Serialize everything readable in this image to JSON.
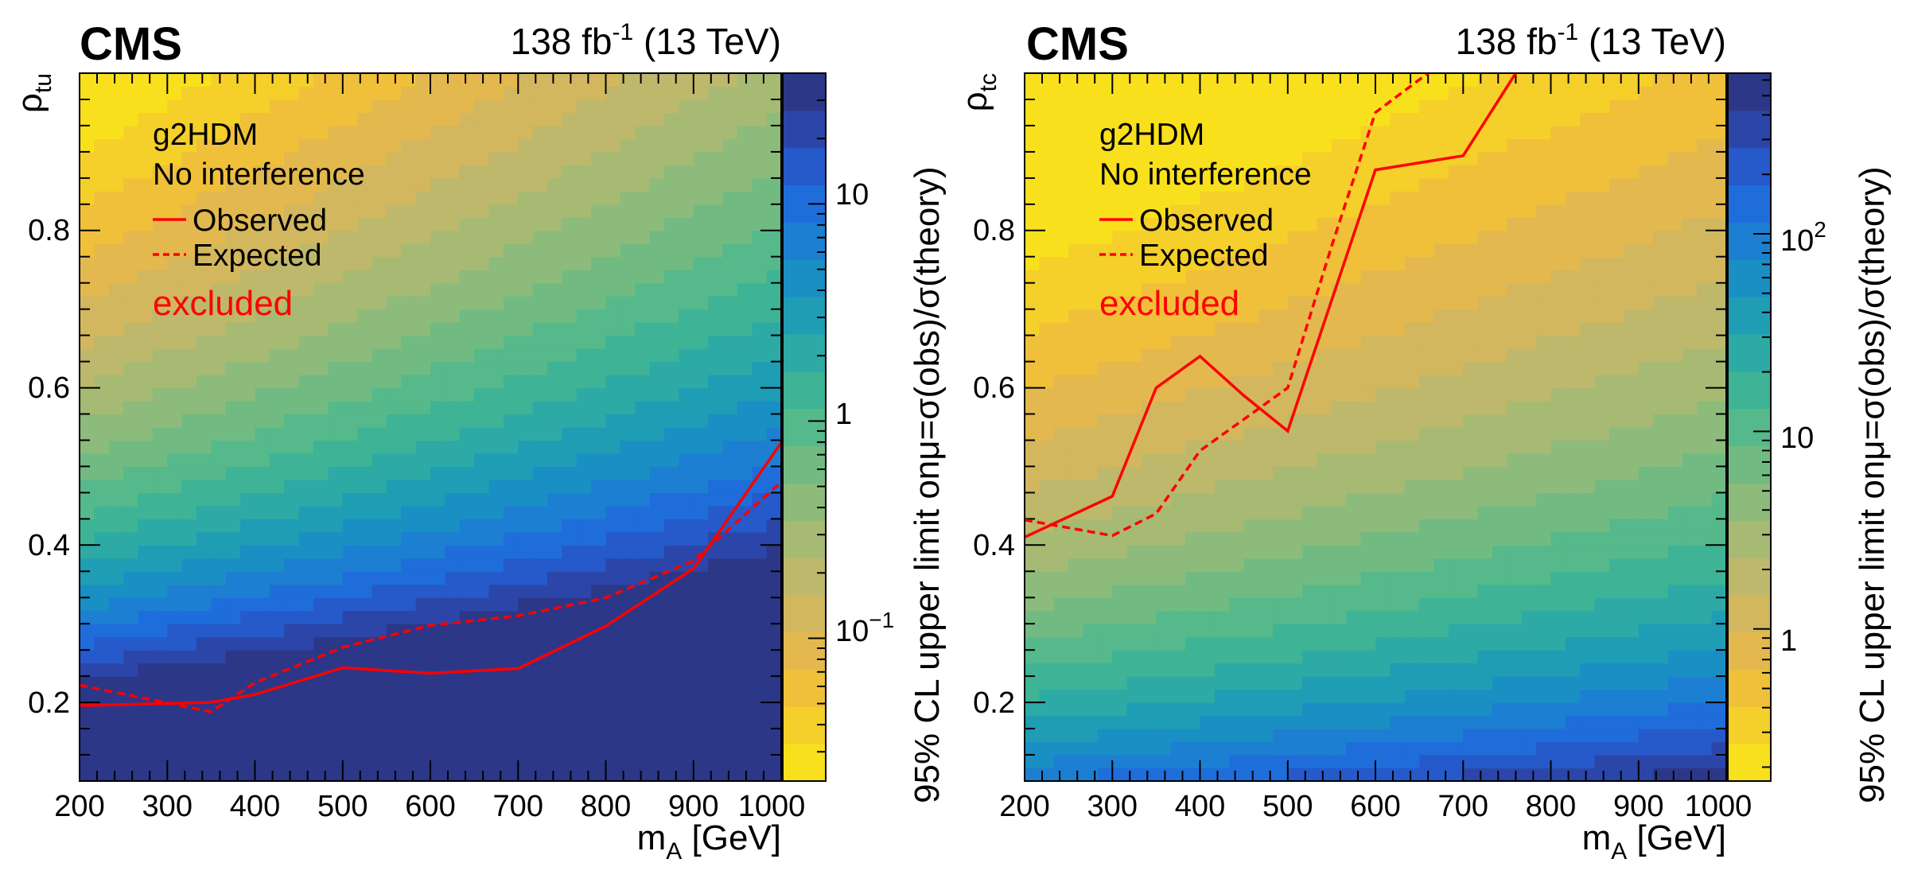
{
  "palette": [
    "#f9e01c",
    "#f5cf2a",
    "#f0c03a",
    "#e3b84e",
    "#d2b75f",
    "#bdb86b",
    "#a6ba74",
    "#8cbb7b",
    "#71bb83",
    "#55b98b",
    "#3eb396",
    "#2daaa5",
    "#1f9db5",
    "#1a8fc4",
    "#1c7fd1",
    "#1f6dda",
    "#2659c9",
    "#2b46a8",
    "#2c3788"
  ],
  "panels": [
    {
      "header": {
        "cms": "CMS",
        "lumi_main": "138 fb",
        "lumi_sup": "-1",
        "lumi_energy": " (13 TeV)"
      },
      "legend": {
        "model": "g2HDM",
        "interference": "No interference",
        "observed": "Observed",
        "expected": "Expected",
        "excluded": "excluded"
      },
      "colorbar_title": "95% CL upper limit onμ=σ(obs)/σ(theory)",
      "ylabel_main": "ρ",
      "ylabel_sub": "tu",
      "xlabel_main": "m",
      "xlabel_sub": "A",
      "xlabel_unit": " [GeV]",
      "x_ticks": [
        "200",
        "300",
        "400",
        "500",
        "600",
        "700",
        "800",
        "900",
        "1000"
      ],
      "y_ticks": [
        "0.2",
        "0.4",
        "0.6",
        "0.8"
      ],
      "cb_ticks": [
        {
          "base": "10",
          "sup": "−1",
          "value": 0.1
        },
        {
          "base": "1",
          "sup": "",
          "value": 1
        },
        {
          "base": "10",
          "sup": "",
          "value": 10
        }
      ]
    },
    {
      "header": {
        "cms": "CMS",
        "lumi_main": "138 fb",
        "lumi_sup": "-1",
        "lumi_energy": " (13 TeV)"
      },
      "legend": {
        "model": "g2HDM",
        "interference": "No interference",
        "observed": "Observed",
        "expected": "Expected",
        "excluded": "excluded"
      },
      "colorbar_title": "95% CL upper limit onμ=σ(obs)/σ(theory)",
      "ylabel_main": "ρ",
      "ylabel_sub": "tc",
      "xlabel_main": "m",
      "xlabel_sub": "A",
      "xlabel_unit": " [GeV]",
      "x_ticks": [
        "200",
        "300",
        "400",
        "500",
        "600",
        "700",
        "800",
        "900",
        "1000"
      ],
      "y_ticks": [
        "0.2",
        "0.4",
        "0.6",
        "0.8"
      ],
      "cb_ticks": [
        {
          "base": "1",
          "sup": "",
          "value": 1
        },
        {
          "base": "10",
          "sup": "",
          "value": 10
        },
        {
          "base": "10",
          "sup": "2",
          "value": 100
        }
      ]
    }
  ],
  "chart_data": [
    {
      "type": "heatmap",
      "title": "CMS 138 fb-1 (13 TeV)",
      "xlabel": "m_A [GeV]",
      "ylabel": "rho_tu",
      "zlabel": "95% CL upper limit on mu=sigma(obs)/sigma(theory)",
      "xlim": [
        200,
        1000
      ],
      "ylim": [
        0.1,
        1.0
      ],
      "zlim": [
        0.022,
        40
      ],
      "zscale": "log",
      "limit_model": {
        "k": 5.06,
        "B": 0.02,
        "m_scale": 300,
        "C": 0.0105
      },
      "series": [
        {
          "name": "Observed",
          "style": "solid",
          "x": [
            200,
            350,
            400,
            500,
            600,
            700,
            800,
            900,
            1000
          ],
          "y": [
            0.196,
            0.2,
            0.21,
            0.244,
            0.237,
            0.243,
            0.297,
            0.37,
            0.53
          ]
        },
        {
          "name": "Expected",
          "style": "dashed",
          "x": [
            200,
            350,
            400,
            500,
            600,
            700,
            800,
            900,
            1000
          ],
          "y": [
            0.222,
            0.188,
            0.225,
            0.27,
            0.298,
            0.31,
            0.333,
            0.38,
            0.48
          ]
        }
      ]
    },
    {
      "type": "heatmap",
      "title": "CMS 138 fb-1 (13 TeV)",
      "xlabel": "m_A [GeV]",
      "ylabel": "rho_tc",
      "zlabel": "95% CL upper limit on mu=sigma(obs)/sigma(theory)",
      "xlim": [
        200,
        1000
      ],
      "ylim": [
        0.1,
        1.0
      ],
      "zlim": [
        0.17,
        650
      ],
      "zscale": "log",
      "limit_model": {
        "k": 4.5,
        "B": 0.15,
        "m_scale": 480,
        "C": 0.13
      },
      "series": [
        {
          "name": "Observed",
          "style": "solid",
          "x": [
            200,
            300,
            350,
            400,
            450,
            500,
            600,
            700,
            760
          ],
          "y": [
            0.41,
            0.462,
            0.6,
            0.64,
            0.59,
            0.545,
            0.877,
            0.895,
            1.0
          ]
        },
        {
          "name": "Expected",
          "style": "dashed",
          "x": [
            200,
            300,
            350,
            400,
            500,
            550,
            600,
            660
          ],
          "y": [
            0.432,
            0.412,
            0.44,
            0.52,
            0.6,
            0.78,
            0.95,
            1.0
          ]
        }
      ]
    }
  ]
}
